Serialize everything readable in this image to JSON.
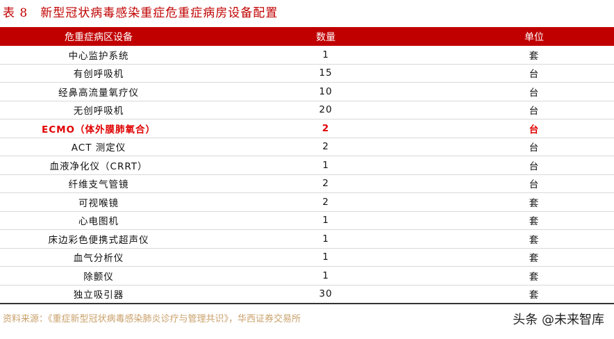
{
  "title": "表 8　新型冠状病毒感染重症危重症病房设备配置",
  "headers": [
    "危重症病区设备",
    "数量",
    "单位"
  ],
  "rows": [
    [
      "中心监护系统",
      "1",
      "套"
    ],
    [
      "有创呼吸机",
      "15",
      "台"
    ],
    [
      "经鼻高流量氧疗仪",
      "10",
      "台"
    ],
    [
      "无创呼吸机",
      "20",
      "台"
    ],
    [
      "ECMO（体外膜肺氧合）",
      "2",
      "台"
    ],
    [
      "ACT 测定仪",
      "2",
      "台"
    ],
    [
      "血液净化仪（CRRT）",
      "1",
      "台"
    ],
    [
      "纤维支气管镜",
      "2",
      "台"
    ],
    [
      "可视喉镜",
      "2",
      "套"
    ],
    [
      "心电图机",
      "1",
      "套"
    ],
    [
      "床边彩色便携式超声仪",
      "1",
      "套"
    ],
    [
      "血气分析仪",
      "1",
      "套"
    ],
    [
      "除颤仪",
      "1",
      "套"
    ],
    [
      "独立吸引器",
      "30",
      "套"
    ]
  ],
  "highlight_row": 4,
  "source": "资料来源：《重症新型冠状病毒感染肺炎诊疗与管理共识》，华西证券交易所",
  "watermark": "头条 @未来智库",
  "colors": {
    "accent": "#c00000",
    "highlight": "#e00000",
    "source": "#c9a06a"
  }
}
